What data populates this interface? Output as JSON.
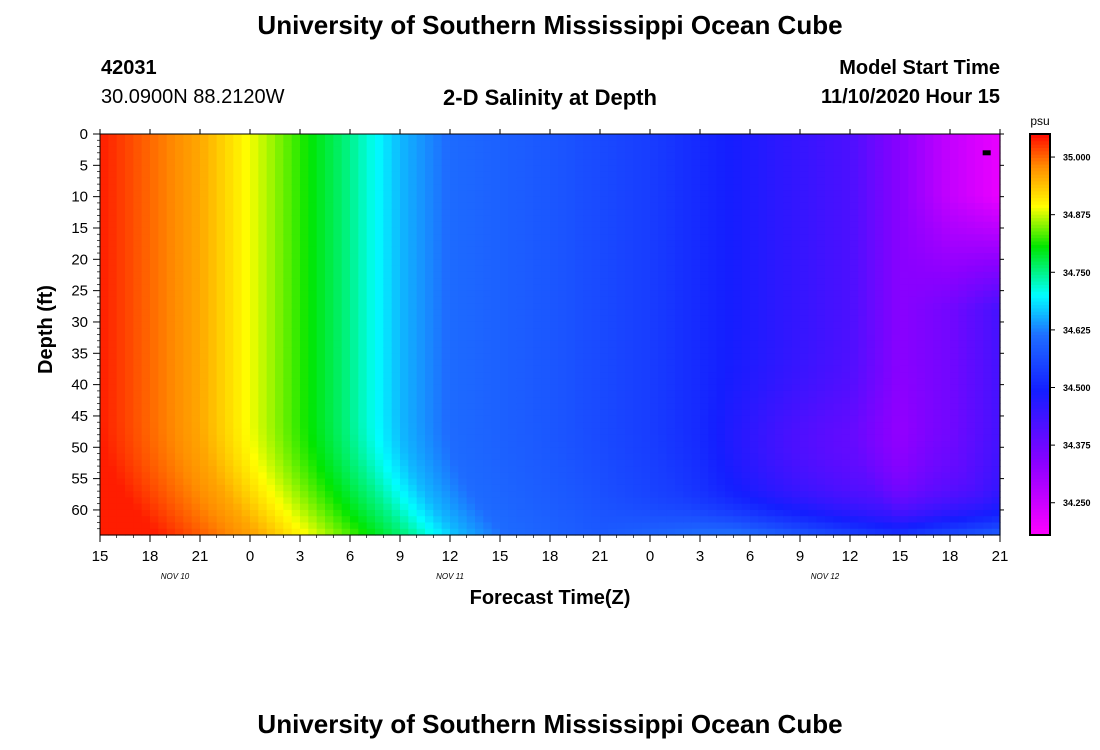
{
  "page": {
    "title_top": "University of Southern Mississippi Ocean Cube",
    "title_bottom": "University of Southern Mississippi Ocean Cube",
    "station_id": "42031",
    "station_coords": "30.0900N 88.2120W",
    "chart_title": "2-D Salinity at Depth",
    "model_label": "Model Start Time",
    "model_time": "11/10/2020 Hour 15"
  },
  "chart_data": {
    "type": "heatmap",
    "title": "2-D Salinity at Depth",
    "xlabel": "Forecast Time(Z)",
    "ylabel": "Depth (ft)",
    "x_unit": "hours since 11/10/2020 15Z",
    "x_range": [
      0,
      54
    ],
    "x_tick_labels": [
      "15",
      "18",
      "21",
      "0",
      "3",
      "6",
      "9",
      "12",
      "15",
      "18",
      "21",
      "0",
      "3",
      "6",
      "9",
      "12",
      "15",
      "18",
      "21"
    ],
    "date_labels": [
      {
        "label": "NOV 10",
        "x": 4.5
      },
      {
        "label": "NOV 11",
        "x": 21
      },
      {
        "label": "NOV 12",
        "x": 43.5
      }
    ],
    "y_range": [
      0,
      64
    ],
    "y_ticks": [
      0,
      5,
      10,
      15,
      20,
      25,
      30,
      35,
      40,
      45,
      50,
      55,
      60
    ],
    "y_inverted": true,
    "colorbar": {
      "unit": "psu",
      "range": [
        34.18,
        35.05
      ],
      "ticks": [
        35.0,
        34.875,
        34.75,
        34.625,
        34.5,
        34.375,
        34.25
      ],
      "tick_labels": [
        "35.000",
        "34.875",
        "34.750",
        "34.625",
        "34.500",
        "34.375",
        "34.250"
      ]
    },
    "salinity_surface_profile": [
      {
        "x": 0,
        "v": 35.04
      },
      {
        "x": 6,
        "v": 34.96
      },
      {
        "x": 9,
        "v": 34.89
      },
      {
        "x": 12,
        "v": 34.82
      },
      {
        "x": 15,
        "v": 34.75
      },
      {
        "x": 18,
        "v": 34.66
      },
      {
        "x": 21,
        "v": 34.61
      },
      {
        "x": 27,
        "v": 34.58
      },
      {
        "x": 33,
        "v": 34.54
      },
      {
        "x": 39,
        "v": 34.48
      },
      {
        "x": 45,
        "v": 34.42
      },
      {
        "x": 51,
        "v": 34.26
      },
      {
        "x": 54,
        "v": 34.21
      }
    ],
    "marker": {
      "x": 53.2,
      "y": 3
    }
  }
}
